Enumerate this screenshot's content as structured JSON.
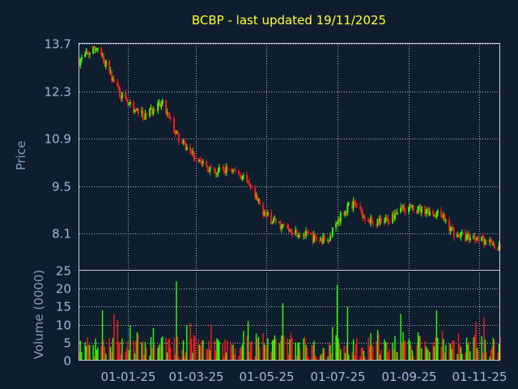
{
  "chart_data": {
    "type": "candlestick",
    "title": "BCBP - last updated 19/11/2025",
    "price_panel": {
      "ylabel": "Price",
      "ylim": [
        7.0,
        13.7
      ],
      "yticks": [
        13.7,
        12.3,
        10.9,
        9.5,
        8.1
      ],
      "series": [
        {
          "date": "2024-11-20",
          "close": 13.2
        },
        {
          "date": "2024-12-05",
          "close": 13.6
        },
        {
          "date": "2024-12-20",
          "close": 12.6
        },
        {
          "date": "2024-12-31",
          "close": 11.9
        },
        {
          "date": "2025-01-15",
          "close": 11.6
        },
        {
          "date": "2025-01-31",
          "close": 11.9
        },
        {
          "date": "2025-02-15",
          "close": 10.8
        },
        {
          "date": "2025-02-28",
          "close": 10.4
        },
        {
          "date": "2025-03-15",
          "close": 9.9
        },
        {
          "date": "2025-03-31",
          "close": 10.0
        },
        {
          "date": "2025-04-10",
          "close": 9.8
        },
        {
          "date": "2025-04-20",
          "close": 9.2
        },
        {
          "date": "2025-05-01",
          "close": 8.6
        },
        {
          "date": "2025-05-15",
          "close": 8.3
        },
        {
          "date": "2025-05-31",
          "close": 8.1
        },
        {
          "date": "2025-06-15",
          "close": 7.9
        },
        {
          "date": "2025-06-25",
          "close": 8.0
        },
        {
          "date": "2025-07-05",
          "close": 8.7
        },
        {
          "date": "2025-07-15",
          "close": 9.0
        },
        {
          "date": "2025-07-31",
          "close": 8.4
        },
        {
          "date": "2025-08-15",
          "close": 8.5
        },
        {
          "date": "2025-08-25",
          "close": 8.9
        },
        {
          "date": "2025-09-05",
          "close": 8.8
        },
        {
          "date": "2025-09-15",
          "close": 8.8
        },
        {
          "date": "2025-09-30",
          "close": 8.6
        },
        {
          "date": "2025-10-10",
          "close": 8.1
        },
        {
          "date": "2025-10-20",
          "close": 8.0
        },
        {
          "date": "2025-10-31",
          "close": 8.0
        },
        {
          "date": "2025-11-10",
          "close": 7.8
        },
        {
          "date": "2025-11-19",
          "close": 7.6
        }
      ]
    },
    "volume_panel": {
      "ylabel": "Volume (0000)",
      "ylim": [
        0,
        25
      ],
      "yticks": [
        25,
        20,
        15,
        10,
        5,
        0
      ],
      "series": [
        {
          "date": "2024-12-10",
          "volume": 14
        },
        {
          "date": "2024-12-20",
          "volume": 13
        },
        {
          "date": "2025-02-12",
          "volume": 22
        },
        {
          "date": "2025-04-15",
          "volume": 11
        },
        {
          "date": "2025-05-15",
          "volume": 16
        },
        {
          "date": "2025-05-25",
          "volume": 14
        },
        {
          "date": "2025-07-01",
          "volume": 21
        },
        {
          "date": "2025-07-10",
          "volume": 15
        },
        {
          "date": "2025-08-25",
          "volume": 13
        },
        {
          "date": "2025-09-25",
          "volume": 14
        },
        {
          "date": "2025-11-05",
          "volume": 12
        }
      ]
    },
    "x_axis": {
      "range": [
        "2024-11-20",
        "2025-11-19"
      ],
      "ticks": [
        {
          "date": "2025-01-01",
          "label": "01-01-25"
        },
        {
          "date": "2025-03-01",
          "label": "01-03-25"
        },
        {
          "date": "2025-05-01",
          "label": "01-05-25"
        },
        {
          "date": "2025-07-01",
          "label": "01-07-25"
        },
        {
          "date": "2025-09-01",
          "label": "01-09-25"
        },
        {
          "date": "2025-11-01",
          "label": "01-11-25"
        }
      ]
    },
    "grid": true,
    "colors": {
      "background": "#0f1e2e",
      "up": "#33ff00",
      "down": "#ff1a1a",
      "title": "#ffff33",
      "axis_text": "#9fb8d8",
      "axis_label": "#7f9fbf",
      "grid": "#c8d0dc"
    }
  }
}
